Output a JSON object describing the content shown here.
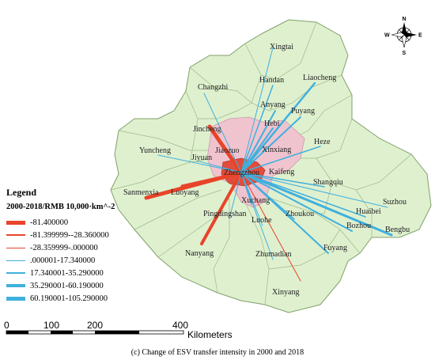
{
  "map": {
    "title": "",
    "cities": {
      "xingtai": "Xingtai",
      "handan": "Handan",
      "liaocheng": "Liaocheng",
      "changzhi": "Changzhi",
      "anyang": "Anyang",
      "puyang": "Puyang",
      "hebi": "Hebi",
      "jincheng": "Jincheng",
      "xinxiang": "Xinxiang",
      "heze": "Heze",
      "jiaozuo": "Jiaozuo",
      "yuncheng": "Yuncheng",
      "jiyuan": "Jiyuan",
      "zhengzhou": "Zhengzhou",
      "kaifeng": "Kaifeng",
      "shangqiu": "Shangqiu",
      "sanmenxia": "Sanmenxia",
      "luoyang": "Luoyang",
      "xuchang": "Xuchang",
      "suzhou": "Suzhou",
      "huaibei": "Huaibei",
      "pingdingshan": "Pingdingshan",
      "luohe": "Luohe",
      "zhoukou": "Zhoukou",
      "bozhou": "Bozhou",
      "bengbu": "Bengbu",
      "nanyang": "Nanyang",
      "zhumadian": "Zhumadian",
      "fuyang": "Fuyang",
      "xinyang": "Xinyang"
    }
  },
  "legend": {
    "title": "Legend",
    "subtitle": "2000-2018/RMB 10,000·km^-2",
    "classes": [
      {
        "label": "-81.400000",
        "color": "#e8442a",
        "weight": 5
      },
      {
        "label": "-81.399999--28.360000",
        "color": "#e8442a",
        "weight": 2.5
      },
      {
        "label": "-28.359999-.000000",
        "color": "#e8442a",
        "weight": 1
      },
      {
        "label": ".000001-17.340000",
        "color": "#3fb0de",
        "weight": 1
      },
      {
        "label": "17.340001-35.290000",
        "color": "#3fb0de",
        "weight": 2
      },
      {
        "label": "35.290001-60.190000",
        "color": "#3fb0de",
        "weight": 3.5
      },
      {
        "label": "60.190001-105.290000",
        "color": "#3fb0de",
        "weight": 5
      }
    ]
  },
  "scale_bar": {
    "ticks": [
      "0",
      "100",
      "200",
      "400"
    ],
    "unit": "Kilometers"
  },
  "compass": {
    "n": "N",
    "s": "S",
    "e": "E",
    "w": "W"
  },
  "caption": "(c) Change of ESV transfer intensity in 2000 and 2018",
  "colors": {
    "land": "#dff0cf",
    "land_border": "#8fb07a",
    "core_pink": "#f0c4cf",
    "zhengzhou": "#e24c3c",
    "flow_negative": "#e8442a",
    "flow_positive": "#3fb0de"
  }
}
